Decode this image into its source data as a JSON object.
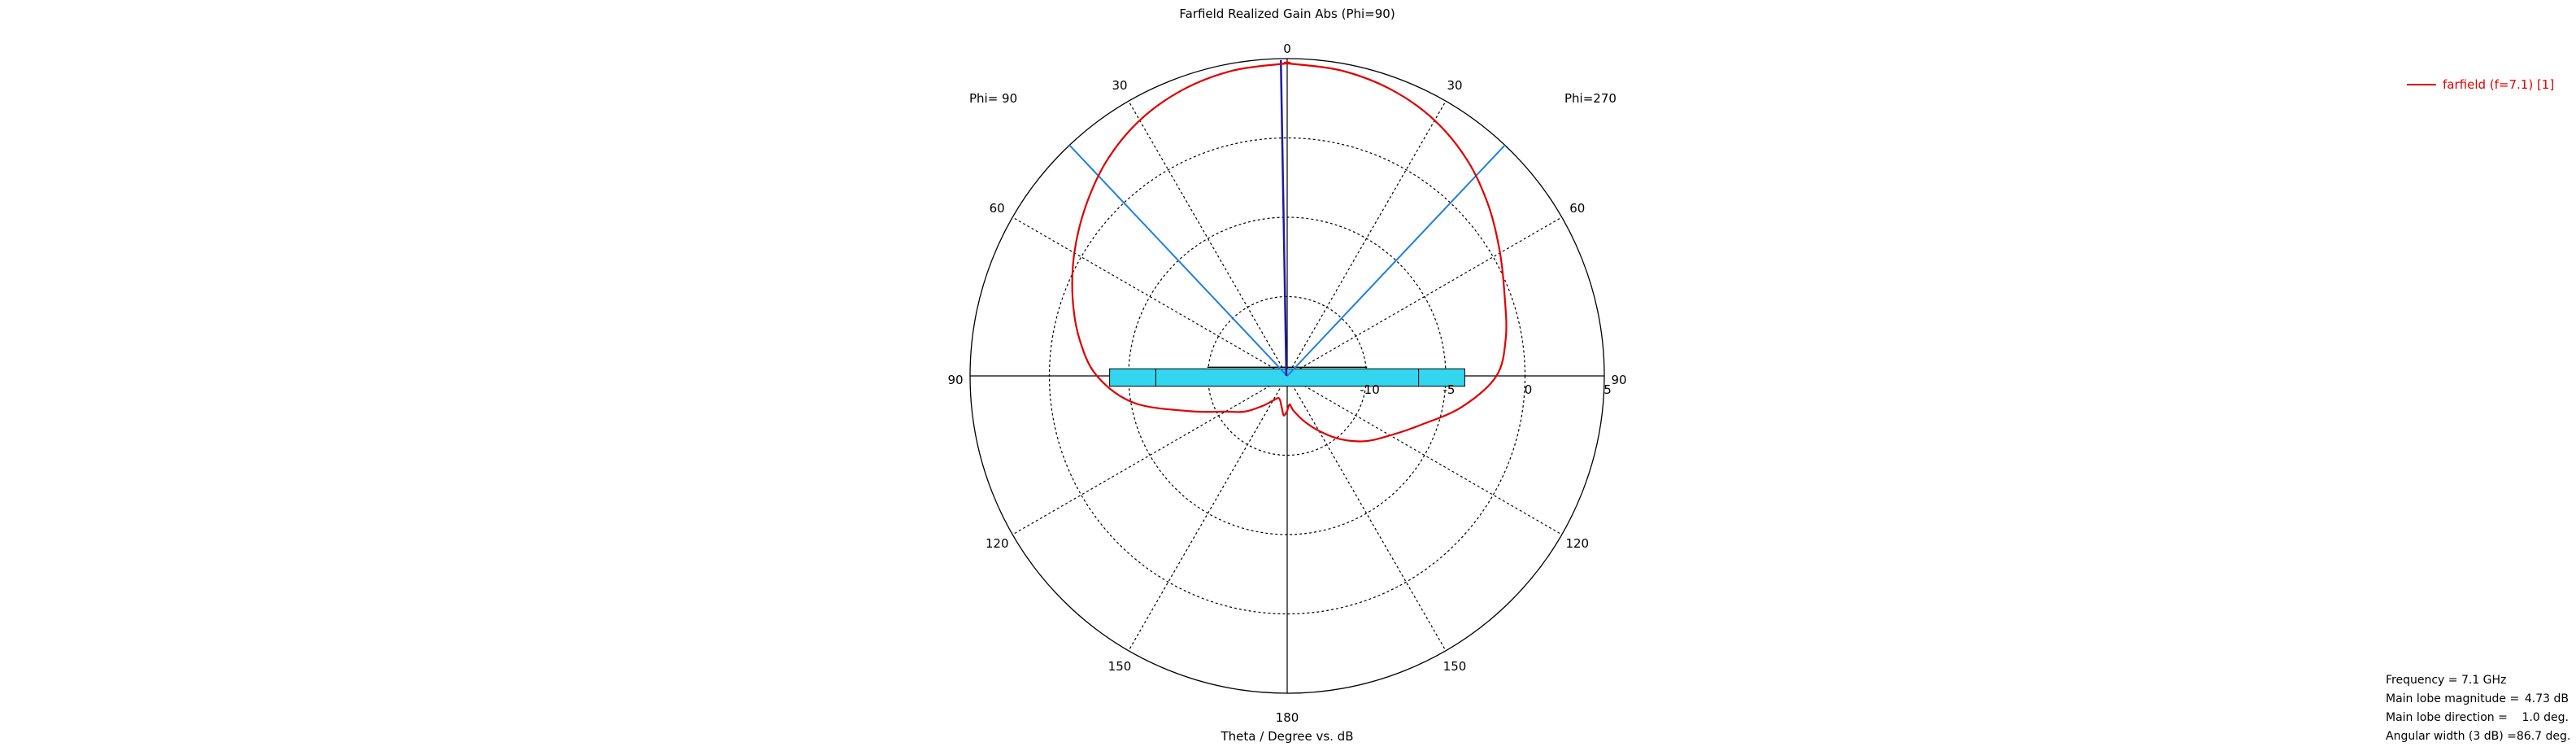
{
  "chart_data": {
    "type": "polar-line",
    "title": "Farfield Realized Gain Abs (Phi=90)",
    "xlabel": "Theta / Degree vs. dB",
    "left_label": "Phi= 90",
    "right_label": "Phi=270",
    "angle_labels": [
      "0",
      "30",
      "60",
      "90",
      "120",
      "150",
      "180"
    ],
    "radial_labels": [
      "-10",
      "-5",
      "0",
      "5"
    ],
    "radial_range": [
      -15,
      5
    ],
    "series": [
      {
        "name": "farfield (f=7.1) [1]",
        "color": "#e00000",
        "theta_deg": [
          0,
          10,
          20,
          30,
          40,
          50,
          60,
          70,
          80,
          90,
          100,
          110,
          120,
          130,
          140,
          150,
          160,
          170,
          175,
          180
        ],
        "gain_left_dB": [
          4.7,
          4.55,
          4.2,
          3.6,
          2.7,
          1.6,
          0.5,
          -0.6,
          -1.7,
          -3.0,
          -5.2,
          -8.5,
          -10.5,
          -11.5,
          -12.5,
          -13.2,
          -13.5,
          -13.0,
          -12.5,
          -12.8
        ],
        "gain_right_dB": [
          4.7,
          4.55,
          4.2,
          3.6,
          2.7,
          1.6,
          0.5,
          -0.4,
          -1.0,
          -1.8,
          -3.8,
          -6.0,
          -7.5,
          -8.6,
          -9.8,
          -11.0,
          -12.0,
          -12.8,
          -13.2,
          -12.8
        ]
      }
    ],
    "main_lobe_direction_deg": 1.0,
    "beamwidth_edges_deg": [
      -43.35,
      43.35
    ]
  },
  "info": {
    "frequency": "Frequency = 7.1 GHz",
    "main_lobe_magnitude_label": "Main lobe magnitude =",
    "main_lobe_magnitude_value": "4.73 dB",
    "main_lobe_direction_label": "Main lobe direction =",
    "main_lobe_direction_value": "1.0 deg.",
    "angular_width_label": "Angular width (3 dB) =",
    "angular_width_value": "86.7 deg."
  },
  "colors": {
    "pattern": "#e00000",
    "beam_lines": "#1f7ee0",
    "main_lobe": "#1a1aa8",
    "inset_fill": "#33d6ee"
  }
}
